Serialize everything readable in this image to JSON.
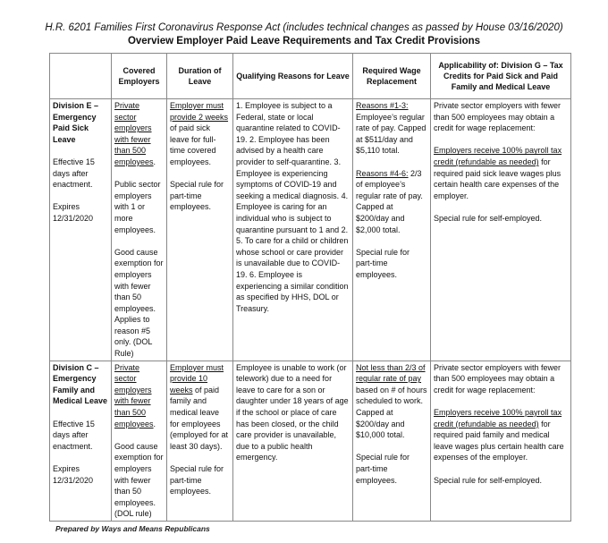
{
  "title_line1": "H.R. 6201 Families First Coronavirus Response Act (includes technical changes as passed by House 03/16/2020)",
  "title_line2": "Overview Employer Paid Leave Requirements and Tax Credit Provisions",
  "headers": [
    "",
    "Covered Employers",
    "Duration of Leave",
    "Qualifying Reasons for Leave",
    "Required Wage Replacement",
    "Applicability of: Division G – Tax Credits for Paid Sick and Paid Family and Medical Leave"
  ],
  "rows": [
    [
      [
        [
          {
            "t": "Division E – Emergency Paid Sick Leave",
            "b": true
          }
        ],
        [
          {
            "t": "Effective 15 days after enactment."
          }
        ],
        [
          {
            "t": "Expires 12/31/2020"
          }
        ]
      ],
      [
        [
          {
            "t": "Private sector employers with fewer than 500 employees",
            "u": true
          },
          {
            "t": "."
          }
        ],
        [
          {
            "t": "Public sector employers with 1 or more employees."
          }
        ],
        [
          {
            "t": "Good cause exemption for employers with fewer than 50 employees. Applies to reason #5 only. (DOL Rule)"
          }
        ]
      ],
      [
        [
          {
            "t": "Employer must provide 2 weeks",
            "u": true
          },
          {
            "t": " of paid sick leave for full-time covered employees."
          }
        ],
        [
          {
            "t": "Special rule for part-time employees."
          }
        ]
      ],
      [
        [
          {
            "t": "1. Employee is subject to a Federal, state or local quarantine related to COVID-19. 2. Employee has been advised by a health care provider to self-quarantine. 3. Employee is experiencing symptoms of COVID-19 and seeking a medical diagnosis. 4. Employee is caring for an individual who is subject to quarantine pursuant to 1 and 2. 5. To care for a child or children whose school or care provider is unavailable due to COVID-19. 6. Employee is experiencing a similar condition as specified by HHS, DOL or Treasury."
          }
        ]
      ],
      [
        [
          {
            "t": "Reasons #1-3:",
            "u": true
          },
          {
            "t": " Employee’s regular rate of pay. Capped at $511/day and $5,110 total."
          }
        ],
        [
          {
            "t": "Reasons #4-6:",
            "u": true
          },
          {
            "t": " 2/3 of employee’s regular rate of pay. Capped at $200/day and $2,000 total."
          }
        ],
        [
          {
            "t": "Special rule for part-time employees."
          }
        ]
      ],
      [
        [
          {
            "t": "Private sector employers with fewer than 500 employees may obtain a credit for wage replacement:"
          }
        ],
        [
          {
            "t": "Employers receive 100% payroll tax credit (refundable as needed)",
            "u": true
          },
          {
            "t": " for required paid sick leave wages plus certain health care expenses of the employer."
          }
        ],
        [
          {
            "t": "Special rule for self-employed."
          }
        ]
      ]
    ],
    [
      [
        [
          {
            "t": "Division C – Emergency Family and Medical Leave",
            "b": true
          }
        ],
        [
          {
            "t": "Effective 15 days after enactment."
          }
        ],
        [
          {
            "t": "Expires 12/31/2020"
          }
        ]
      ],
      [
        [
          {
            "t": "Private sector employers with fewer than 500 employees",
            "u": true
          },
          {
            "t": "."
          }
        ],
        [
          {
            "t": "Good cause exemption for employers with fewer than 50 employees. (DOL rule)"
          }
        ]
      ],
      [
        [
          {
            "t": "Employer must provide 10 weeks",
            "u": true
          },
          {
            "t": " of paid family and medical leave for employees (employed for at least 30 days)."
          }
        ],
        [
          {
            "t": "Special rule for part-time employees."
          }
        ]
      ],
      [
        [
          {
            "t": "Employee is unable to work (or telework) due to a need for leave to care for a son or daughter under 18 years of age if the school or place of care has been closed, or the child care provider is unavailable, due to a public health emergency."
          }
        ]
      ],
      [
        [
          {
            "t": "Not less than 2/3 of regular rate of pay",
            "u": true
          },
          {
            "t": " based on # of hours scheduled to work. Capped at $200/day and $10,000 total."
          }
        ],
        [
          {
            "t": "Special rule for part-time employees."
          }
        ]
      ],
      [
        [
          {
            "t": "Private sector employers with fewer than 500 employees may obtain a credit for wage replacement:"
          }
        ],
        [
          {
            "t": "Employers receive 100% payroll tax credit (refundable as needed)",
            "u": true
          },
          {
            "t": " for required paid family and medical leave wages plus certain health care expenses of the employer."
          }
        ],
        [
          {
            "t": "Special rule for self-employed."
          }
        ]
      ]
    ]
  ],
  "footer": "Prepared by Ways and Means Republicans"
}
